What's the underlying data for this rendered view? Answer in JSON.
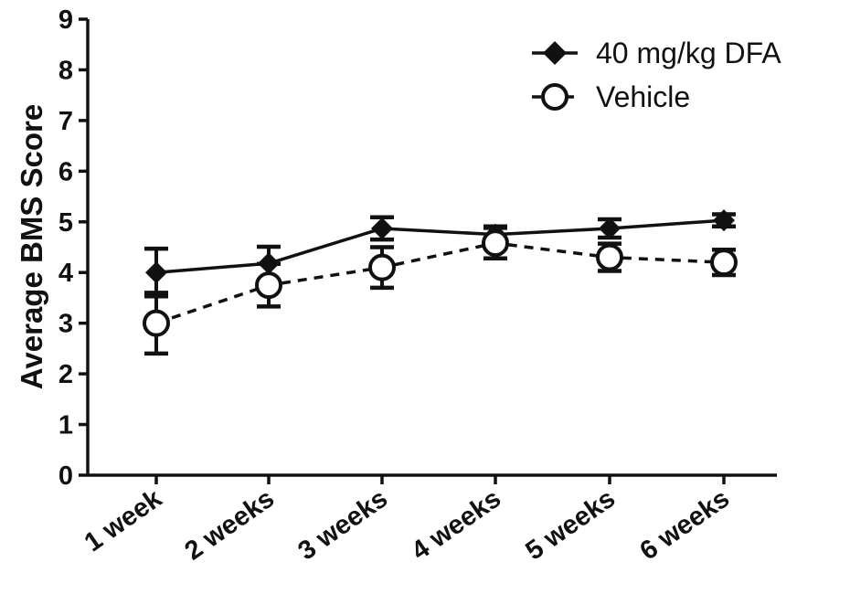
{
  "chart_data": {
    "type": "line",
    "categories": [
      "1 week",
      "2 weeks",
      "3 weeks",
      "4 weeks",
      "5 weeks",
      "6 weeks"
    ],
    "ylabel": "Average BMS Score",
    "xlabel": "",
    "ylim": [
      0,
      9
    ],
    "yticks": [
      "0",
      "1",
      "2",
      "3",
      "4",
      "5",
      "6",
      "7",
      "8",
      "9"
    ],
    "grid": false,
    "legend_position": "top-right",
    "series": [
      {
        "name": "40 mg/kg DFA",
        "marker": "filled-diamond",
        "line_style": "solid",
        "color": "#111111",
        "values": [
          4.0,
          4.18,
          4.87,
          4.75,
          4.87,
          5.03
        ],
        "error": [
          0.47,
          0.33,
          0.22,
          0.16,
          0.18,
          0.12
        ]
      },
      {
        "name": "Vehicle",
        "marker": "open-circle",
        "line_style": "dashed",
        "color": "#111111",
        "values": [
          3.0,
          3.75,
          4.1,
          4.58,
          4.3,
          4.2
        ],
        "error": [
          0.6,
          0.42,
          0.4,
          0.3,
          0.27,
          0.25
        ]
      }
    ]
  }
}
